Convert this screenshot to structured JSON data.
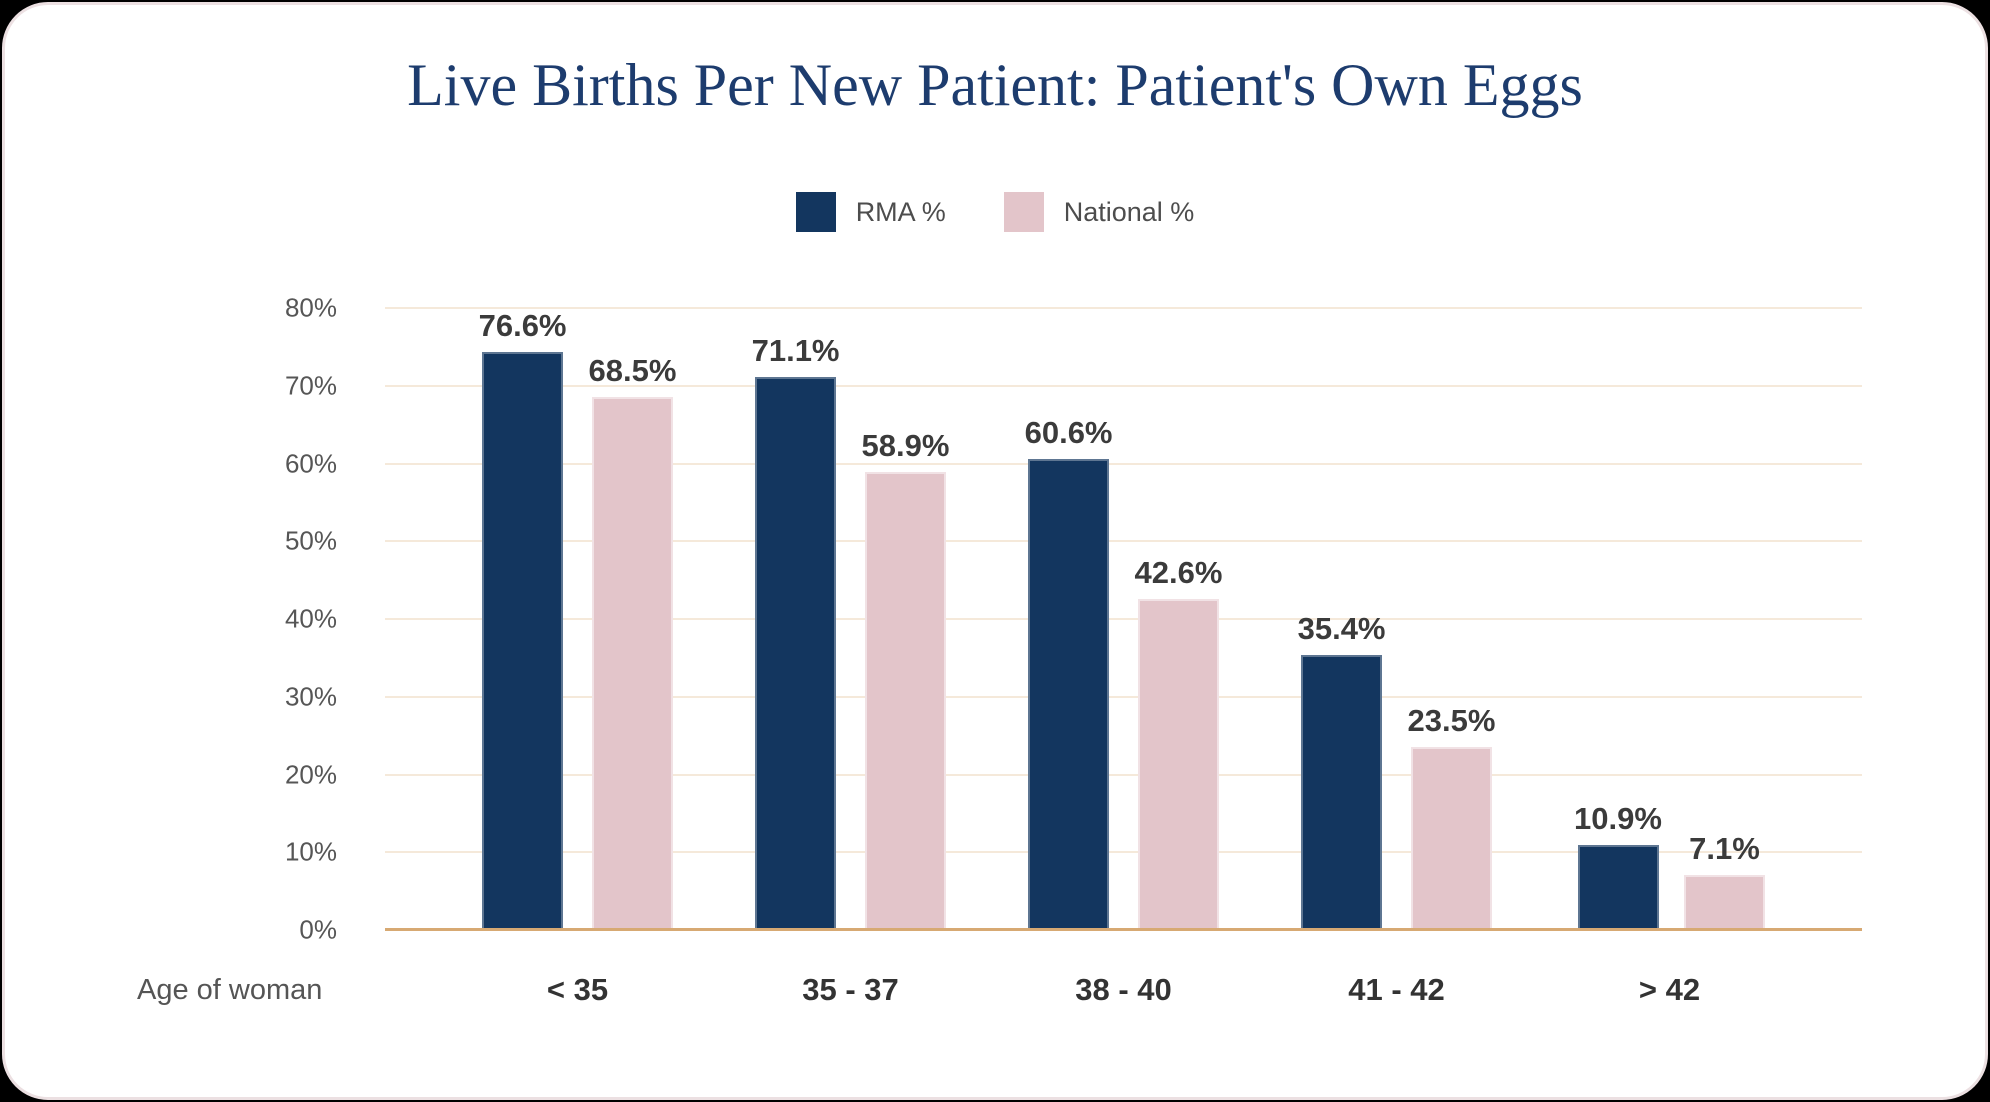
{
  "card": {
    "background": "#ffffff",
    "border_color": "#ece0e2"
  },
  "chart_data": {
    "type": "bar",
    "title": "Live Births Per New Patient: Patient's Own Eggs",
    "categories": [
      "< 35",
      "35 - 37",
      "38 - 40",
      "41 - 42",
      "> 42"
    ],
    "series": [
      {
        "name": "RMA %",
        "color": "#13365f",
        "values": [
          76.6,
          71.1,
          60.6,
          35.4,
          10.9
        ],
        "value_labels": [
          "76.6%",
          "71.1%",
          "60.6%",
          "35.4%",
          "10.9%"
        ]
      },
      {
        "name": "National %",
        "color": "#e3c5ca",
        "values": [
          68.5,
          58.9,
          42.6,
          23.5,
          7.1
        ],
        "value_labels": [
          "68.5%",
          "58.9%",
          "42.6%",
          "23.5%",
          "7.1%"
        ]
      }
    ],
    "xlabel": "Age of woman",
    "ylabel": "",
    "ylim": [
      0,
      80
    ],
    "yticks": [
      0,
      10,
      20,
      30,
      40,
      50,
      60,
      70,
      80
    ],
    "ytick_labels": [
      "0%",
      "10%",
      "20%",
      "30%",
      "40%",
      "50%",
      "60%",
      "70%",
      "80%"
    ],
    "grid": true,
    "legend_position": "top",
    "colors": {
      "title_text": "#1d3c6e",
      "gridline": "#f5e9da",
      "axis_baseline": "#d7a973",
      "axis_text": "#565656",
      "data_label_text": "#3b3b3b"
    }
  }
}
